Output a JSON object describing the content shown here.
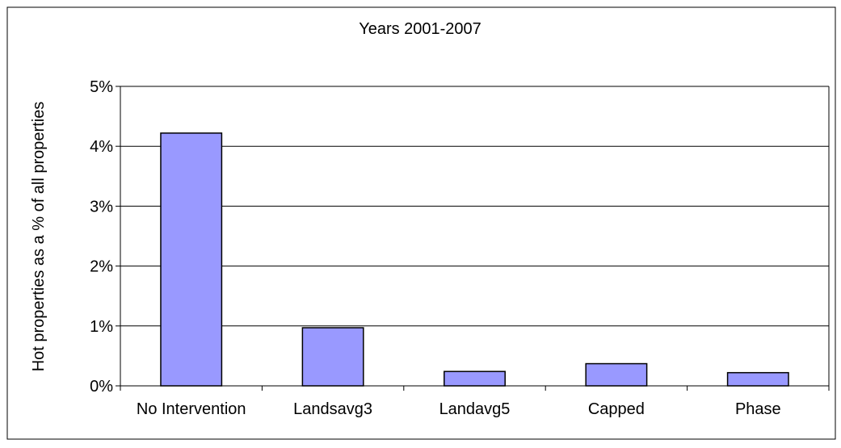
{
  "chart_data": {
    "type": "bar",
    "title": "Years 2001-2007",
    "xlabel": "",
    "ylabel": "Hot properties as a % of all properties",
    "categories": [
      "No Intervention",
      "Landsavg3",
      "Landavg5",
      "Capped",
      "Phase"
    ],
    "series": [
      {
        "values": [
          4.22,
          0.97,
          0.24,
          0.37,
          0.22
        ]
      }
    ],
    "ylim": [
      0,
      5
    ],
    "yticks": [
      0,
      1,
      2,
      3,
      4,
      5
    ],
    "ytick_labels": [
      "0%",
      "1%",
      "2%",
      "3%",
      "4%",
      "5%"
    ],
    "grid": true,
    "legend": "none",
    "colors": {
      "bar_fill": "#9999ff",
      "bar_stroke": "#000000",
      "plot_background": "#ffffff",
      "gridline": "#000000",
      "frame": "#000000"
    }
  }
}
